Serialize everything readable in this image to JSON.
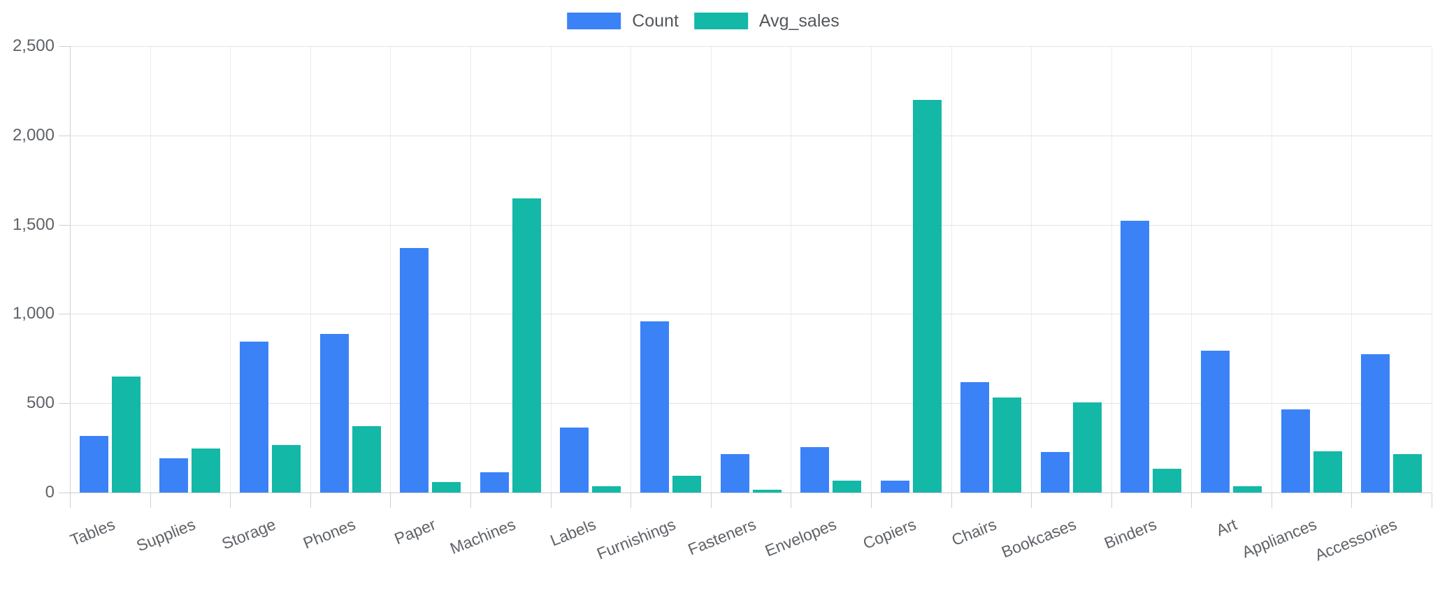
{
  "legend": {
    "items": [
      {
        "label": "Count",
        "color": "#3b82f6"
      },
      {
        "label": "Avg_sales",
        "color": "#14b8a6"
      }
    ]
  },
  "chart_data": {
    "type": "bar",
    "title": "",
    "xlabel": "",
    "ylabel": "",
    "categories": [
      "Tables",
      "Supplies",
      "Storage",
      "Phones",
      "Paper",
      "Machines",
      "Labels",
      "Furnishings",
      "Fasteners",
      "Envelopes",
      "Copiers",
      "Chairs",
      "Bookcases",
      "Binders",
      "Art",
      "Appliances",
      "Accessories"
    ],
    "series": [
      {
        "name": "Count",
        "color": "#3b82f6",
        "values": [
          319,
          190,
          846,
          889,
          1370,
          115,
          364,
          957,
          217,
          254,
          68,
          617,
          228,
          1523,
          796,
          466,
          775
        ]
      },
      {
        "name": "Avg_sales",
        "color": "#14b8a6",
        "values": [
          648.79,
          245.65,
          264.59,
          371.21,
          57.28,
          1645.55,
          34.3,
          95.83,
          13.94,
          64.87,
          2198.94,
          532.33,
          503.86,
          133.56,
          34.07,
          230.76,
          215.97
        ]
      }
    ],
    "ylim": [
      0,
      2500
    ],
    "ytick_labels": [
      "0",
      "500",
      "1,000",
      "1,500",
      "2,000",
      "2,500"
    ],
    "grid": "on",
    "legend_position": "top-center",
    "x_label_rotation_deg": -22
  },
  "colors": {
    "background": "#ffffff",
    "hgrid": "#e3e3e3",
    "vgrid": "#ececec",
    "axis": "#ccd0d4",
    "axis_text": "#5f6368",
    "legend_text": "#53575c"
  }
}
